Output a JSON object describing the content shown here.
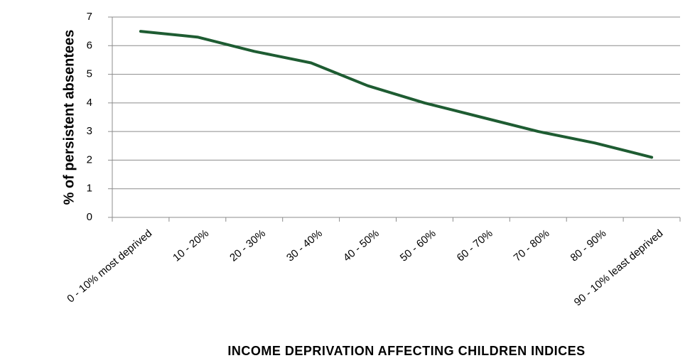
{
  "chart_data": {
    "type": "line",
    "title": "",
    "xlabel": "INCOME DEPRIVATION AFFECTING CHILDREN INDICES",
    "ylabel": "% of persistent absentees",
    "ylim": [
      0,
      7
    ],
    "yticks": [
      0,
      1,
      2,
      3,
      4,
      5,
      6,
      7
    ],
    "grid": "horizontal",
    "categories": [
      "0 - 10% most deprived",
      "10 - 20%",
      "20 - 30%",
      "30 - 40%",
      "40 - 50%",
      "50 - 60%",
      "60 - 70%",
      "70 - 80%",
      "80 - 90%",
      "90 - 10% least deprived"
    ],
    "series": [
      {
        "values": [
          6.5,
          6.3,
          5.8,
          5.4,
          4.6,
          4.0,
          3.5,
          3.0,
          2.6,
          2.1
        ],
        "color": "#1e5c32"
      }
    ]
  }
}
